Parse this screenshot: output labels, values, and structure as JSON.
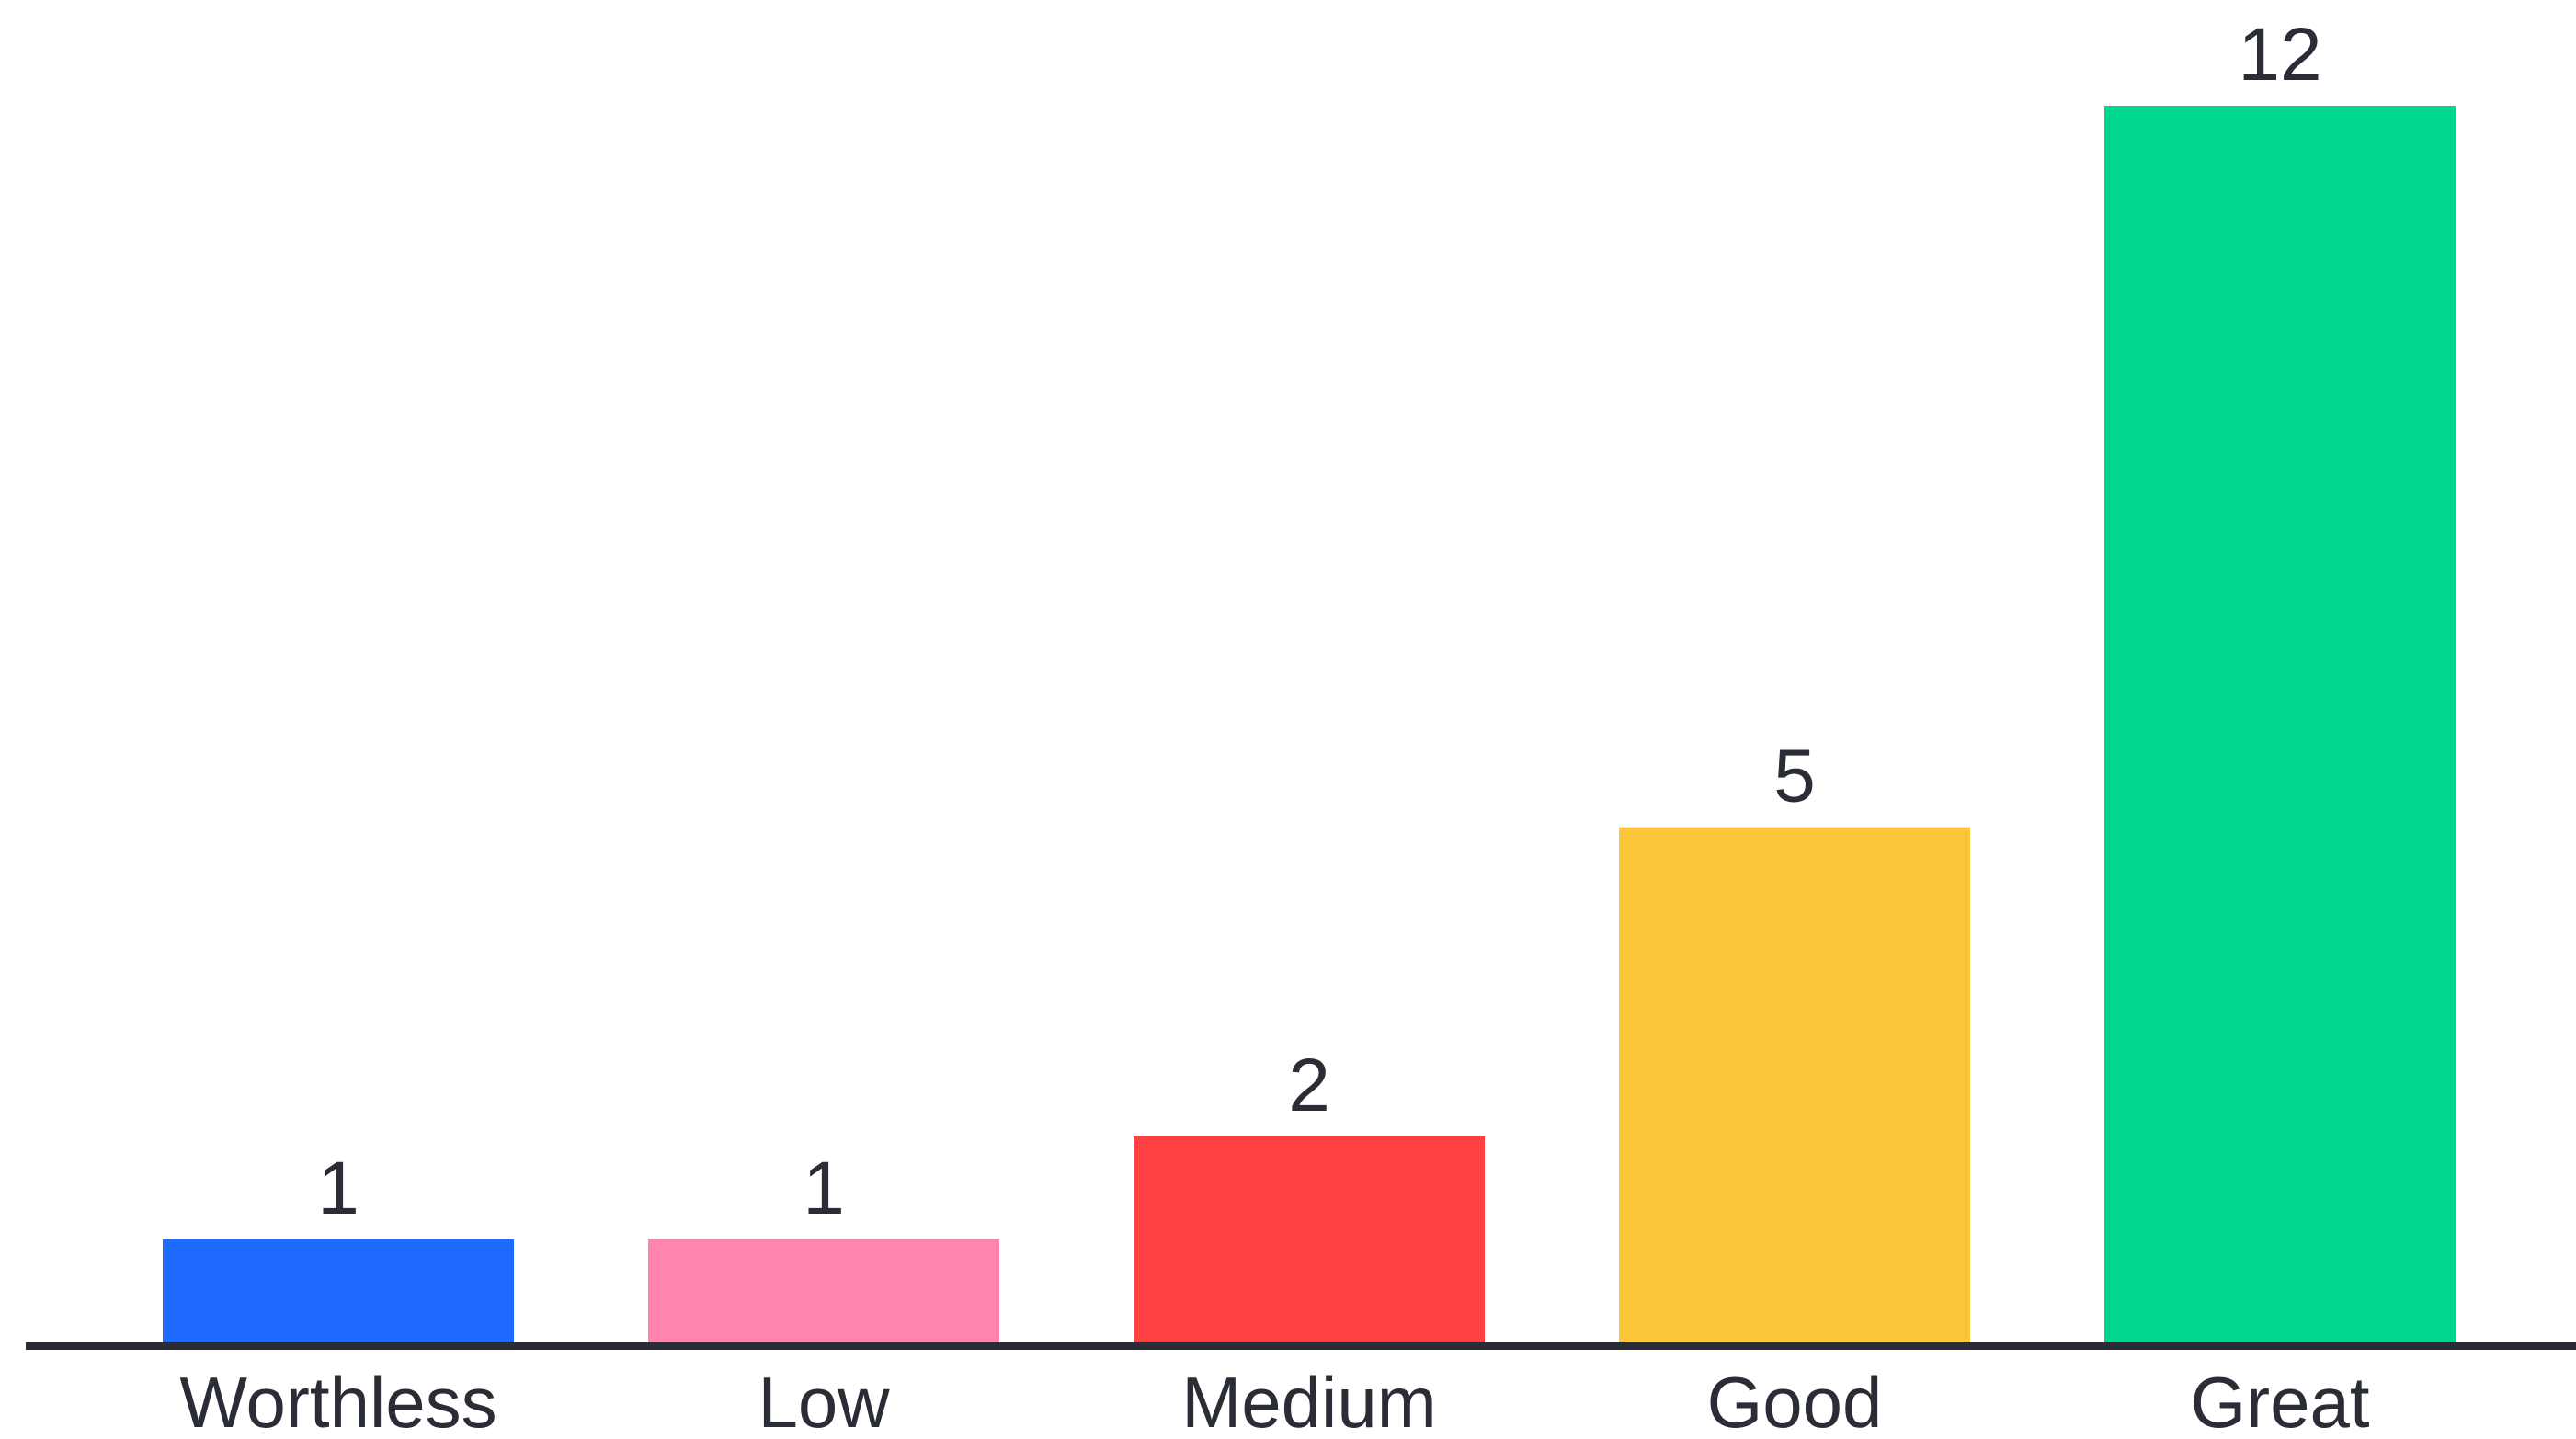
{
  "chart_data": {
    "type": "bar",
    "categories": [
      "Worthless",
      "Low",
      "Medium",
      "Good",
      "Great"
    ],
    "values": [
      1,
      1,
      2,
      5,
      12
    ],
    "colors": [
      "#1f6bff",
      "#ff85b0",
      "#ff4040",
      "#fdc53a",
      "#00d68f"
    ],
    "axis_color": "#2a2d36",
    "title": "",
    "xlabel": "",
    "ylabel": "",
    "ylim": [
      0,
      12
    ],
    "grid": false,
    "legend": "none",
    "data_labels": [
      "1",
      "1",
      "2",
      "5",
      "12"
    ]
  }
}
